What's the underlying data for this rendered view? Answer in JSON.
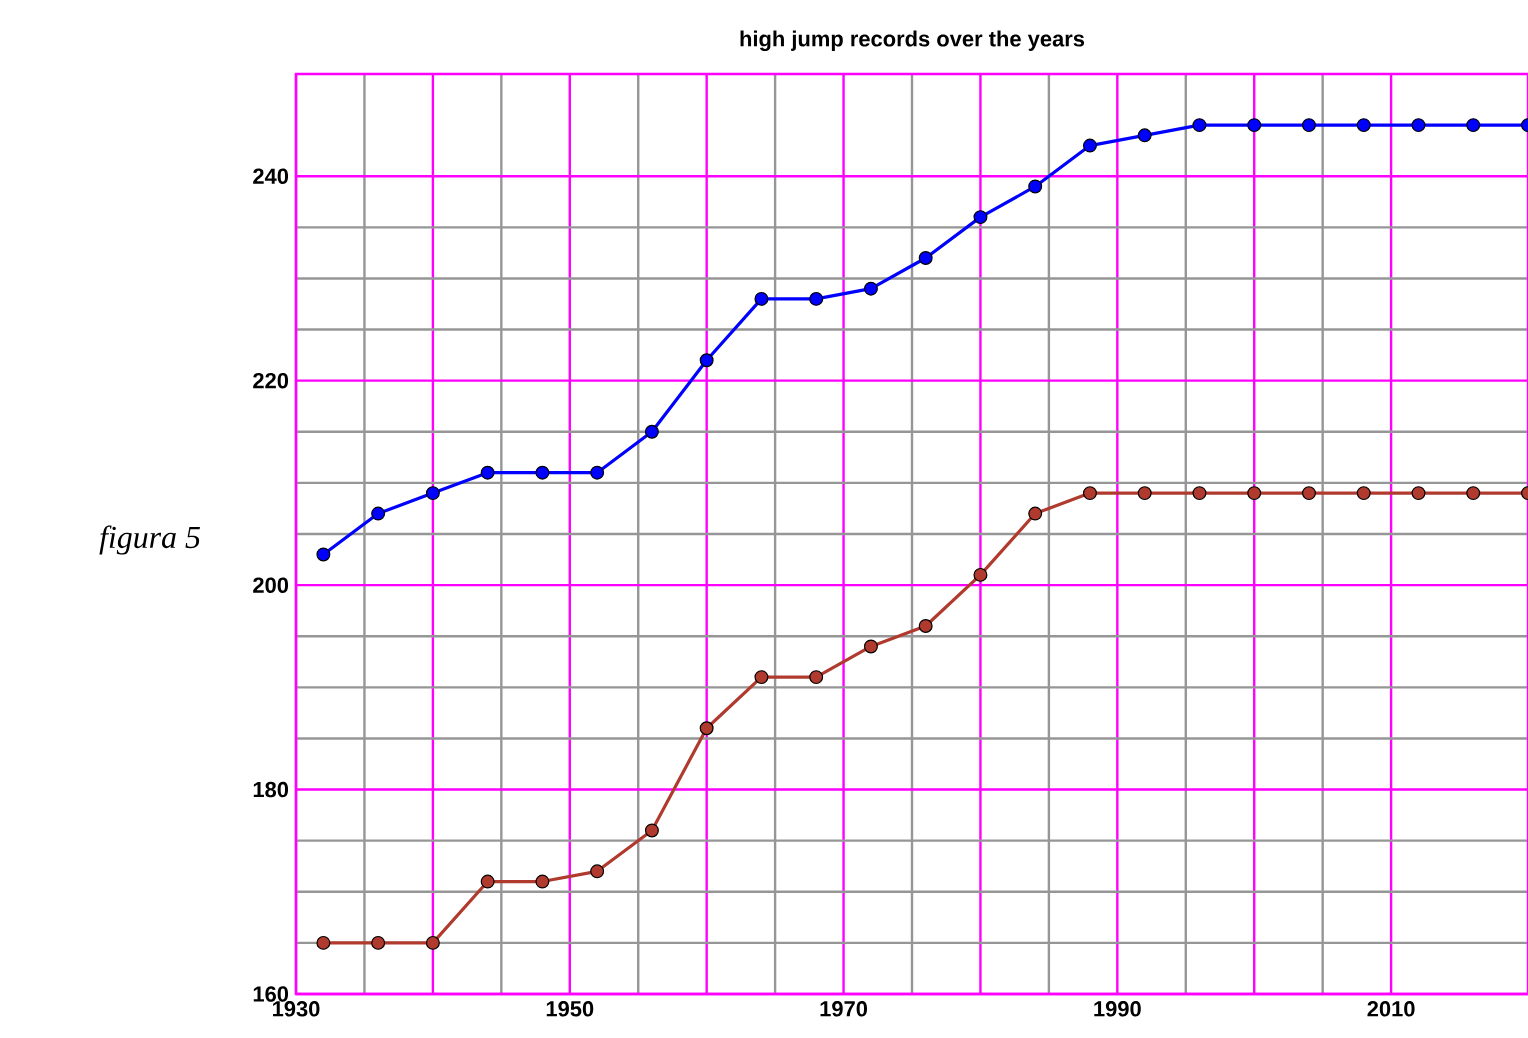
{
  "chart_data": {
    "type": "line",
    "title": "high jump records over the years",
    "annotations": [
      "figura 5"
    ],
    "x": [
      1932,
      1936,
      1940,
      1944,
      1948,
      1952,
      1956,
      1960,
      1964,
      1968,
      1972,
      1976,
      1980,
      1984,
      1988,
      1992,
      1996,
      2000,
      2004,
      2008,
      2012,
      2016,
      2020
    ],
    "series": [
      {
        "color": "#0000ff",
        "values": [
          203,
          207,
          209,
          211,
          211,
          211,
          215,
          222,
          228,
          228,
          229,
          232,
          236,
          239,
          243,
          244,
          245,
          245,
          245,
          245,
          245,
          245,
          245
        ]
      },
      {
        "color": "#b03a2e",
        "values": [
          165,
          165,
          165,
          171,
          171,
          172,
          176,
          186,
          191,
          191,
          194,
          196,
          201,
          207,
          209,
          209,
          209,
          209,
          209,
          209,
          209,
          209,
          209
        ]
      }
    ],
    "xlim": [
      1930,
      2020
    ],
    "ylim": [
      160,
      250
    ],
    "xticks": [
      1930,
      {
        "value": 1940,
        "label": null
      },
      1950,
      {
        "value": 1960,
        "label": null
      },
      1970,
      {
        "value": 1980,
        "label": null
      },
      1990,
      {
        "value": 2000,
        "label": null
      },
      2010
    ],
    "yticks": [
      160,
      180,
      200,
      220,
      240
    ],
    "grid": true,
    "marker": "circle",
    "line_style": "solid"
  }
}
